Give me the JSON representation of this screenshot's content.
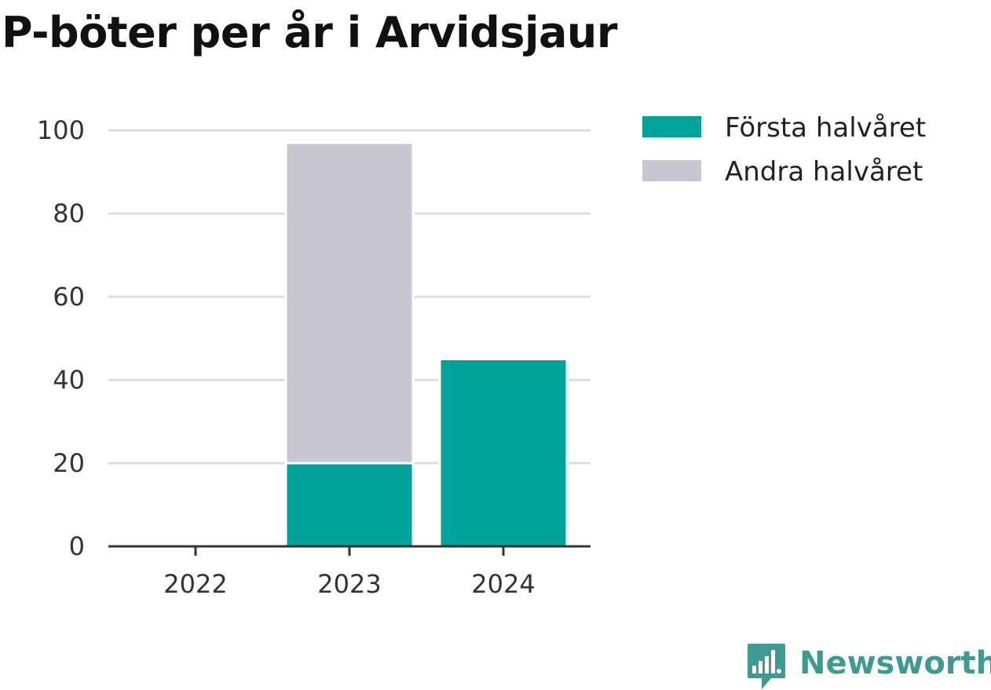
{
  "chart_data": {
    "type": "bar",
    "stacked": true,
    "title": "P-böter per år i Arvidsjaur",
    "categories": [
      "2022",
      "2023",
      "2024"
    ],
    "series": [
      {
        "name": "Första halvåret",
        "values": [
          0,
          20,
          45
        ],
        "color": "#00a39a"
      },
      {
        "name": "Andra halvåret",
        "values": [
          0,
          77,
          0
        ],
        "color": "#c8c7d1"
      }
    ],
    "ylim": [
      0,
      100
    ],
    "yticks": [
      0,
      20,
      40,
      60,
      80,
      100
    ],
    "grid": true,
    "legend": "top-right"
  },
  "branding": {
    "name": "Newsworthy",
    "icon": "newsworthy-logo-icon",
    "color": "#3f9a94"
  }
}
